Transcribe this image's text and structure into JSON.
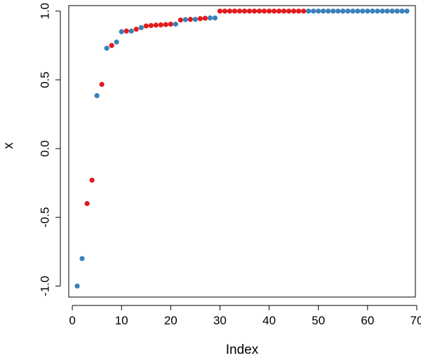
{
  "chart_data": {
    "type": "scatter",
    "title": "",
    "xlabel": "Index",
    "ylabel": "x",
    "xlim": [
      -0.72,
      69.72
    ],
    "ylim": [
      -1.08,
      1.04
    ],
    "xticks": [
      0,
      10,
      20,
      30,
      40,
      50,
      60,
      70
    ],
    "xtick_labels": [
      "0",
      "10",
      "20",
      "30",
      "40",
      "50",
      "60",
      "70"
    ],
    "yticks": [
      -1.0,
      -0.5,
      0.0,
      0.5,
      1.0
    ],
    "ytick_labels": [
      "-1.0",
      "-0.5",
      "0.0",
      "0.5",
      "1.0"
    ],
    "grid": false,
    "legend": "none",
    "colors": {
      "blue": "#3a80b9",
      "red": "#e31a1c"
    },
    "points": [
      {
        "x": 1,
        "y": -1.0,
        "color": "blue"
      },
      {
        "x": 2,
        "y": -0.8,
        "color": "blue"
      },
      {
        "x": 3,
        "y": -0.4,
        "color": "red"
      },
      {
        "x": 4,
        "y": -0.23,
        "color": "red"
      },
      {
        "x": 5,
        "y": 0.385,
        "color": "blue"
      },
      {
        "x": 6,
        "y": 0.467,
        "color": "red"
      },
      {
        "x": 7,
        "y": 0.73,
        "color": "blue"
      },
      {
        "x": 8,
        "y": 0.75,
        "color": "red"
      },
      {
        "x": 9,
        "y": 0.775,
        "color": "blue"
      },
      {
        "x": 10,
        "y": 0.85,
        "color": "blue"
      },
      {
        "x": 11,
        "y": 0.855,
        "color": "red"
      },
      {
        "x": 12,
        "y": 0.855,
        "color": "blue"
      },
      {
        "x": 13,
        "y": 0.868,
        "color": "red"
      },
      {
        "x": 14,
        "y": 0.88,
        "color": "blue"
      },
      {
        "x": 15,
        "y": 0.892,
        "color": "red"
      },
      {
        "x": 16,
        "y": 0.895,
        "color": "red"
      },
      {
        "x": 17,
        "y": 0.898,
        "color": "red"
      },
      {
        "x": 18,
        "y": 0.9,
        "color": "red"
      },
      {
        "x": 19,
        "y": 0.902,
        "color": "red"
      },
      {
        "x": 20,
        "y": 0.905,
        "color": "red"
      },
      {
        "x": 21,
        "y": 0.905,
        "color": "blue"
      },
      {
        "x": 22,
        "y": 0.935,
        "color": "red"
      },
      {
        "x": 23,
        "y": 0.938,
        "color": "blue"
      },
      {
        "x": 24,
        "y": 0.94,
        "color": "red"
      },
      {
        "x": 25,
        "y": 0.94,
        "color": "blue"
      },
      {
        "x": 26,
        "y": 0.945,
        "color": "red"
      },
      {
        "x": 27,
        "y": 0.948,
        "color": "red"
      },
      {
        "x": 28,
        "y": 0.95,
        "color": "blue"
      },
      {
        "x": 29,
        "y": 0.95,
        "color": "blue"
      },
      {
        "x": 30,
        "y": 1.0,
        "color": "red"
      },
      {
        "x": 31,
        "y": 1.0,
        "color": "red"
      },
      {
        "x": 32,
        "y": 1.0,
        "color": "red"
      },
      {
        "x": 33,
        "y": 1.0,
        "color": "red"
      },
      {
        "x": 34,
        "y": 1.0,
        "color": "red"
      },
      {
        "x": 35,
        "y": 1.0,
        "color": "red"
      },
      {
        "x": 36,
        "y": 1.0,
        "color": "red"
      },
      {
        "x": 37,
        "y": 1.0,
        "color": "red"
      },
      {
        "x": 38,
        "y": 1.0,
        "color": "red"
      },
      {
        "x": 39,
        "y": 1.0,
        "color": "red"
      },
      {
        "x": 40,
        "y": 1.0,
        "color": "red"
      },
      {
        "x": 41,
        "y": 1.0,
        "color": "red"
      },
      {
        "x": 42,
        "y": 1.0,
        "color": "red"
      },
      {
        "x": 43,
        "y": 1.0,
        "color": "red"
      },
      {
        "x": 44,
        "y": 1.0,
        "color": "red"
      },
      {
        "x": 45,
        "y": 1.0,
        "color": "red"
      },
      {
        "x": 46,
        "y": 1.0,
        "color": "red"
      },
      {
        "x": 47,
        "y": 1.0,
        "color": "red"
      },
      {
        "x": 48,
        "y": 1.0,
        "color": "blue"
      },
      {
        "x": 49,
        "y": 1.0,
        "color": "blue"
      },
      {
        "x": 50,
        "y": 1.0,
        "color": "blue"
      },
      {
        "x": 51,
        "y": 1.0,
        "color": "blue"
      },
      {
        "x": 52,
        "y": 1.0,
        "color": "blue"
      },
      {
        "x": 53,
        "y": 1.0,
        "color": "blue"
      },
      {
        "x": 54,
        "y": 1.0,
        "color": "blue"
      },
      {
        "x": 55,
        "y": 1.0,
        "color": "blue"
      },
      {
        "x": 56,
        "y": 1.0,
        "color": "blue"
      },
      {
        "x": 57,
        "y": 1.0,
        "color": "blue"
      },
      {
        "x": 58,
        "y": 1.0,
        "color": "blue"
      },
      {
        "x": 59,
        "y": 1.0,
        "color": "blue"
      },
      {
        "x": 60,
        "y": 1.0,
        "color": "blue"
      },
      {
        "x": 61,
        "y": 1.0,
        "color": "blue"
      },
      {
        "x": 62,
        "y": 1.0,
        "color": "blue"
      },
      {
        "x": 63,
        "y": 1.0,
        "color": "blue"
      },
      {
        "x": 64,
        "y": 1.0,
        "color": "blue"
      },
      {
        "x": 65,
        "y": 1.0,
        "color": "blue"
      },
      {
        "x": 66,
        "y": 1.0,
        "color": "blue"
      },
      {
        "x": 67,
        "y": 1.0,
        "color": "blue"
      },
      {
        "x": 68,
        "y": 1.0,
        "color": "blue"
      }
    ]
  }
}
